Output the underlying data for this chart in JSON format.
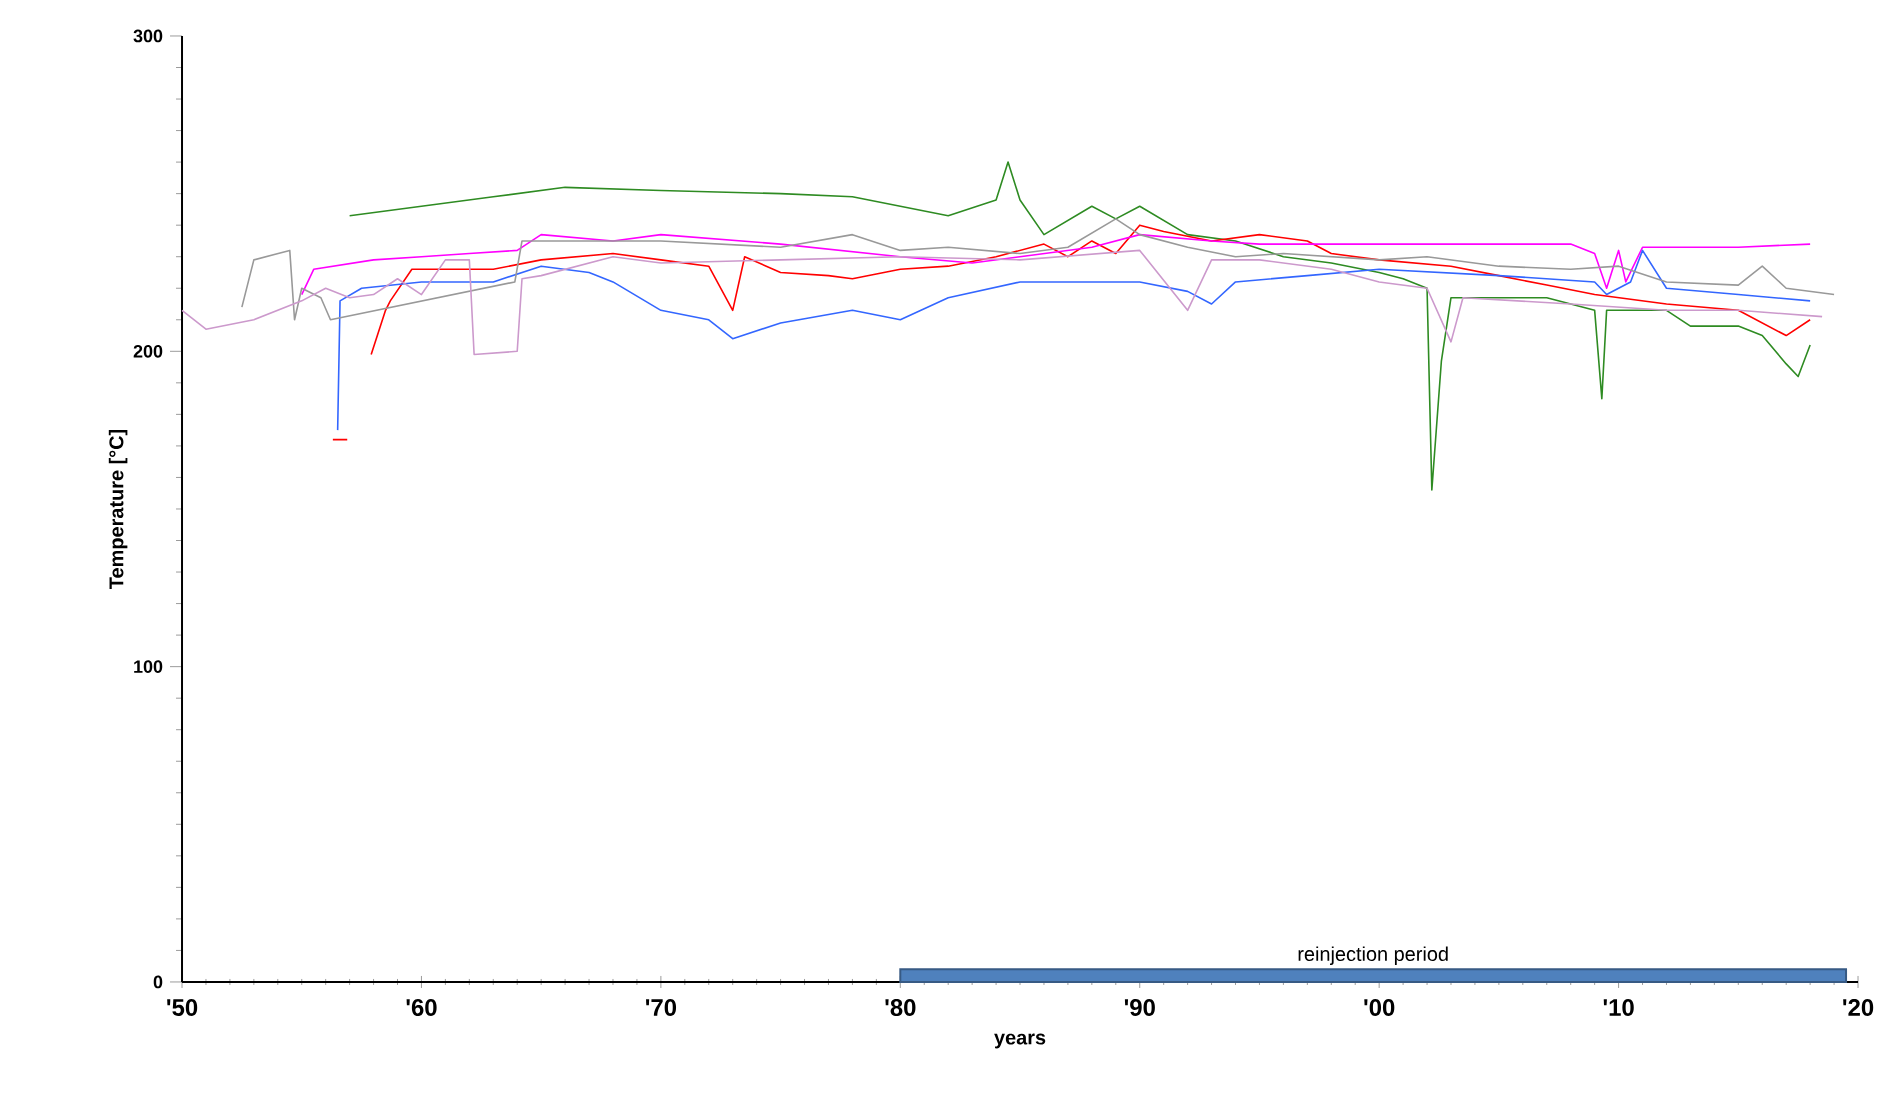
{
  "chart_data": {
    "type": "line",
    "xlabel": "years",
    "ylabel": "Temperature [°C]",
    "xlim": [
      1950,
      2020
    ],
    "ylim": [
      0,
      300
    ],
    "xticks": [
      {
        "value": 1950,
        "label": "'50"
      },
      {
        "value": 1960,
        "label": "'60"
      },
      {
        "value": 1970,
        "label": "'70"
      },
      {
        "value": 1980,
        "label": "'80"
      },
      {
        "value": 1990,
        "label": "'90"
      },
      {
        "value": 2000,
        "label": "'00"
      },
      {
        "value": 2010,
        "label": "'10"
      },
      {
        "value": 2020,
        "label": "'20"
      }
    ],
    "yticks": [
      0,
      100,
      200,
      300
    ],
    "grid": false,
    "legend": false,
    "marker": "none",
    "line_style": "solid",
    "series": [
      {
        "type": "area",
        "name": "reinjection period",
        "color": "#4f81bd",
        "x": [
          1980,
          2019.5
        ],
        "values": [
          4,
          4
        ]
      },
      {
        "color": "#2e8b22",
        "x": [
          1957.0,
          1960,
          1963,
          1966,
          1970,
          1975,
          1978,
          1980,
          1982,
          1984,
          1984.5,
          1985,
          1986,
          1988,
          1989,
          1990,
          1992,
          1994,
          1996,
          1998,
          2000,
          2001,
          2002,
          2002.2,
          2002.6,
          2003,
          2005,
          2007,
          2009,
          2009.3,
          2009.5,
          2012,
          2013,
          2015,
          2016,
          2017,
          2017.5,
          2018
        ],
        "values": [
          243,
          246,
          249,
          252,
          251,
          250,
          249,
          246,
          243,
          248,
          260,
          248,
          237,
          246,
          242,
          246,
          237,
          235,
          230,
          228,
          225,
          223,
          220,
          156,
          197,
          217,
          217,
          217,
          213,
          185,
          213,
          213,
          208,
          208,
          205,
          196,
          192,
          202
        ]
      },
      {
        "color": "#ff0000",
        "x": [
          1956.3,
          1956.9,
          1957.5,
          1957.9,
          1958.5,
          1958.7,
          1959.6,
          1963,
          1965,
          1968,
          1970,
          1972,
          1973,
          1973.5,
          1975,
          1977,
          1978,
          1980,
          1982,
          1984,
          1986,
          1987,
          1988,
          1989,
          1990,
          1991,
          1993,
          1995,
          1997,
          1998,
          2000,
          2003,
          2005,
          2007,
          2009,
          2012,
          2015,
          2017,
          2018
        ],
        "values": [
          172,
          172,
          null,
          199,
          213,
          216,
          226,
          226,
          229,
          231,
          229,
          227,
          213,
          230,
          225,
          224,
          223,
          226,
          227,
          230,
          234,
          230,
          235,
          231,
          240,
          238,
          235,
          237,
          235,
          231,
          229,
          227,
          224,
          221,
          218,
          215,
          213,
          205,
          210
        ]
      },
      {
        "color": "#ff00ff",
        "x": [
          1955,
          1955.5,
          1958,
          1960,
          1962,
          1964,
          1965,
          1968,
          1970,
          1975,
          1980,
          1983,
          1985,
          1988,
          1990,
          1993,
          1995,
          1998,
          2000,
          2005,
          2008,
          2009,
          2009.5,
          2010,
          2010.3,
          2011,
          2015,
          2018
        ],
        "values": [
          218,
          226,
          229,
          230,
          231,
          232,
          237,
          235,
          237,
          234,
          230,
          228,
          230,
          233,
          237,
          235,
          234,
          234,
          234,
          234,
          234,
          231,
          220,
          232,
          222,
          233,
          233,
          234
        ]
      },
      {
        "color": "#3366ff",
        "x": [
          1956.5,
          1956.6,
          1957.5,
          1960,
          1963,
          1965,
          1967,
          1968,
          1970,
          1972,
          1973,
          1975,
          1978,
          1980,
          1982,
          1985,
          1988,
          1990,
          1992,
          1993,
          1994,
          1997,
          2000,
          2005,
          2009,
          2009.5,
          2010.5,
          2011,
          2012,
          2015,
          2018
        ],
        "values": [
          175,
          216,
          220,
          222,
          222,
          227,
          225,
          222,
          213,
          210,
          204,
          209,
          213,
          210,
          217,
          222,
          222,
          222,
          219,
          215,
          222,
          224,
          226,
          224,
          222,
          218,
          222,
          232,
          220,
          218,
          216
        ]
      },
      {
        "color": "#999999",
        "x": [
          1952.5,
          1953,
          1954.5,
          1954.7,
          1955,
          1955.8,
          1956.2,
          1963.9,
          1964.2,
          1967,
          1970,
          1975,
          1978,
          1980,
          1982,
          1985,
          1987,
          1989,
          1990,
          1992,
          1994,
          1996,
          2000,
          2002,
          2005,
          2008,
          2010,
          2012,
          2015,
          2016,
          2017,
          2019
        ],
        "values": [
          214,
          229,
          232,
          210,
          220,
          217,
          210,
          222,
          235,
          235,
          235,
          233,
          237,
          232,
          233,
          231,
          233,
          242,
          237,
          233,
          230,
          231,
          229,
          230,
          227,
          226,
          227,
          222,
          221,
          227,
          220,
          218
        ]
      },
      {
        "color": "#cc99cc",
        "x": [
          1950,
          1951,
          1953,
          1955,
          1956,
          1957,
          1958,
          1959,
          1960,
          1961,
          1962,
          1962.2,
          1964,
          1964.2,
          1965,
          1968,
          1970,
          1975,
          1980,
          1985,
          1990,
          1992,
          1993,
          1995,
          1998,
          2000,
          2002,
          2003,
          2003.5,
          2008,
          2012,
          2015,
          2018.5
        ],
        "values": [
          213,
          207,
          210,
          216,
          220,
          217,
          218,
          223,
          218,
          229,
          229,
          199,
          200,
          223,
          224,
          230,
          228,
          229,
          230,
          229,
          232,
          213,
          229,
          229,
          226,
          222,
          220,
          203,
          217,
          215,
          213,
          213,
          211
        ]
      }
    ]
  }
}
